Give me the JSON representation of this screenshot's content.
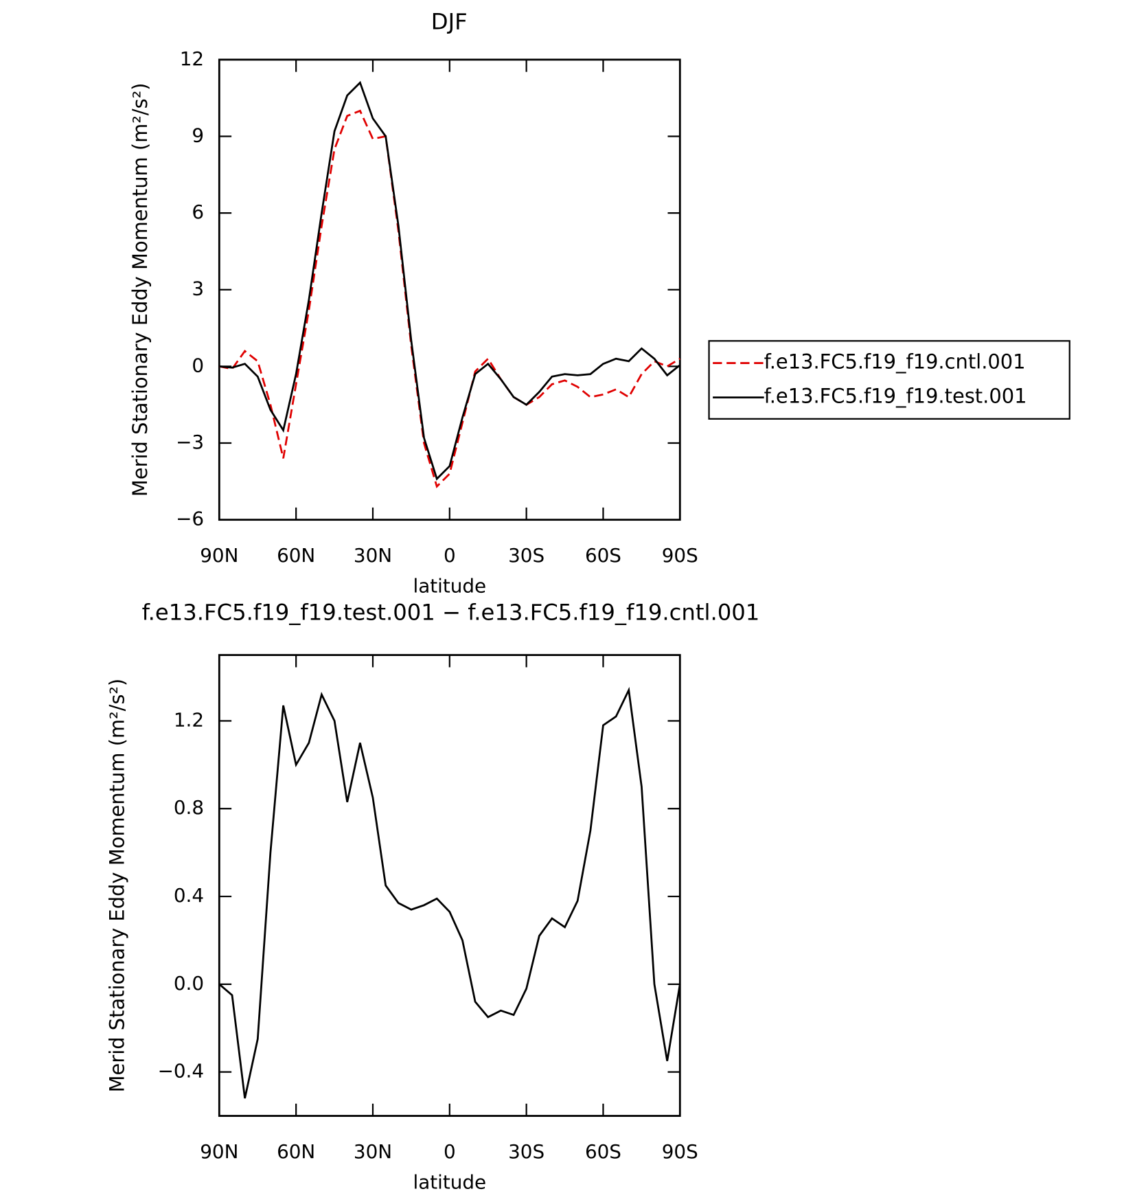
{
  "chart_data": [
    {
      "type": "line",
      "title": "DJF",
      "ylabel": "Merid Stationary Eddy Momentum (m²/s²)",
      "xlabel": "latitude",
      "x": [
        90,
        85,
        80,
        75,
        70,
        65,
        60,
        55,
        50,
        45,
        40,
        35,
        30,
        25,
        20,
        15,
        10,
        5,
        0,
        -5,
        -10,
        -15,
        -20,
        -25,
        -30,
        -35,
        -40,
        -45,
        -50,
        -55,
        -60,
        -65,
        -70,
        -75,
        -80,
        -85,
        -90
      ],
      "series": [
        {
          "name": "f.e13.FC5.f19_f19.cntl.001",
          "color": "#e00000",
          "line_style": "dashed",
          "values": [
            0,
            -0.1,
            0.6,
            0.2,
            -1.5,
            -3.6,
            -0.7,
            2.2,
            5.5,
            8.5,
            9.8,
            10.0,
            8.9,
            9.0,
            5.3,
            0.8,
            -3.0,
            -4.7,
            -4.2,
            -2.2,
            -0.2,
            0.3,
            -0.5,
            -1.2,
            -1.5,
            -1.2,
            -0.7,
            -0.55,
            -0.8,
            -1.2,
            -1.1,
            -0.9,
            -1.2,
            -0.3,
            0.2,
            0.0,
            0.3
          ]
        },
        {
          "name": "f.e13.FC5.f19_f19.test.001",
          "color": "#000000",
          "line_style": "solid",
          "values": [
            0,
            -0.05,
            0.1,
            -0.4,
            -1.7,
            -2.5,
            -0.3,
            2.6,
            6.0,
            9.2,
            10.6,
            11.1,
            9.7,
            9.0,
            5.5,
            1.0,
            -2.8,
            -4.4,
            -3.9,
            -2.0,
            -0.3,
            0.1,
            -0.5,
            -1.2,
            -1.5,
            -1.0,
            -0.4,
            -0.3,
            -0.35,
            -0.3,
            0.1,
            0.3,
            0.2,
            0.7,
            0.3,
            -0.35,
            0.05
          ]
        }
      ],
      "xlim": [
        90,
        -90
      ],
      "xticks": [
        {
          "value": 90,
          "label": "90N"
        },
        {
          "value": 60,
          "label": "60N"
        },
        {
          "value": 30,
          "label": "30N"
        },
        0,
        {
          "value": -30,
          "label": "30S"
        },
        {
          "value": -60,
          "label": "60S"
        },
        {
          "value": -90,
          "label": "90S"
        }
      ],
      "ylim": [
        -6,
        12
      ],
      "yticks": [
        {
          "value": -6,
          "label": "−6"
        },
        {
          "value": -3,
          "label": "−3"
        },
        0,
        3,
        6,
        9,
        12
      ],
      "grid": false,
      "legend": "right"
    },
    {
      "type": "line",
      "title": "f.e13.FC5.f19_f19.test.001 − f.e13.FC5.f19_f19.cntl.001",
      "ylabel": "Merid Stationary Eddy Momentum (m²/s²)",
      "xlabel": "latitude",
      "x": [
        90,
        85,
        80,
        75,
        70,
        65,
        60,
        55,
        50,
        45,
        40,
        35,
        30,
        25,
        20,
        15,
        10,
        5,
        0,
        -5,
        -10,
        -15,
        -20,
        -25,
        -30,
        -35,
        -40,
        -45,
        -50,
        -55,
        -60,
        -65,
        -70,
        -75,
        -80,
        -85,
        -90
      ],
      "series": [
        {
          "color": "#000000",
          "line_style": "solid",
          "values": [
            0,
            -0.05,
            -0.52,
            -0.25,
            0.6,
            1.27,
            1.0,
            1.1,
            1.32,
            1.2,
            0.83,
            1.1,
            0.85,
            0.45,
            0.37,
            0.34,
            0.36,
            0.39,
            0.33,
            0.2,
            -0.08,
            -0.15,
            -0.12,
            -0.14,
            -0.02,
            0.22,
            0.3,
            0.26,
            0.38,
            0.7,
            1.18,
            1.22,
            1.34,
            0.9,
            0.0,
            -0.35,
            0.0
          ]
        }
      ],
      "xlim": [
        90,
        -90
      ],
      "xticks": [
        {
          "value": 90,
          "label": "90N"
        },
        {
          "value": 60,
          "label": "60N"
        },
        {
          "value": 30,
          "label": "30N"
        },
        0,
        {
          "value": -30,
          "label": "30S"
        },
        {
          "value": -60,
          "label": "60S"
        },
        {
          "value": -90,
          "label": "90S"
        }
      ],
      "ylim": [
        -0.6,
        1.5
      ],
      "yticks": [
        {
          "value": -0.4,
          "label": "−0.4"
        },
        {
          "value": 0,
          "label": "0.0"
        },
        0.4,
        0.8,
        1.2
      ],
      "grid": false
    }
  ]
}
